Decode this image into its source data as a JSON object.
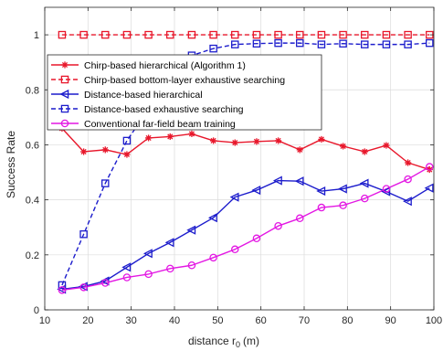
{
  "chart_data": {
    "type": "line",
    "title": "",
    "xlabel": "distance r",
    "xlabel_sub": "0",
    "xlabel_unit": "(m)",
    "ylabel": "Success Rate",
    "xlim": [
      10,
      100
    ],
    "ylim": [
      0,
      1.1
    ],
    "xticks": [
      10,
      20,
      30,
      40,
      50,
      60,
      70,
      80,
      90,
      100
    ],
    "yticks": [
      0,
      0.2,
      0.4,
      0.6,
      0.8,
      1
    ],
    "ytick_labels": [
      "0",
      "0.2",
      "0.4",
      "0.6",
      "0.8",
      "1"
    ],
    "grid": true,
    "legend_position": "upper-left",
    "series": [
      {
        "name": "Chirp-based hierarchical (Algorithm 1)",
        "color": "#e8172b",
        "style": "solid",
        "marker": "asterisk",
        "x": [
          14,
          19,
          24,
          29,
          34,
          39,
          44,
          49,
          54,
          59,
          64,
          69,
          74,
          79,
          84,
          89,
          94,
          99
        ],
        "y": [
          0.66,
          0.575,
          0.582,
          0.565,
          0.625,
          0.63,
          0.64,
          0.615,
          0.608,
          0.612,
          0.615,
          0.582,
          0.62,
          0.595,
          0.575,
          0.598,
          0.535,
          0.51
        ]
      },
      {
        "name": "Chirp-based bottom-layer exhaustive searching",
        "color": "#e8172b",
        "style": "dashed",
        "marker": "square",
        "x": [
          14,
          19,
          24,
          29,
          34,
          39,
          44,
          49,
          54,
          59,
          64,
          69,
          74,
          79,
          84,
          89,
          94,
          99
        ],
        "y": [
          1,
          1,
          1,
          1,
          1,
          1,
          1,
          1,
          1,
          1,
          1,
          1,
          1,
          1,
          1,
          1,
          1,
          1
        ]
      },
      {
        "name": "Distance-based hierarchical",
        "color": "#1c1ccc",
        "style": "solid",
        "marker": "triangle-left",
        "x": [
          14,
          19,
          24,
          29,
          34,
          39,
          44,
          49,
          54,
          59,
          64,
          69,
          74,
          79,
          84,
          89,
          94,
          99
        ],
        "y": [
          0.075,
          0.085,
          0.105,
          0.155,
          0.205,
          0.245,
          0.29,
          0.335,
          0.41,
          0.435,
          0.47,
          0.468,
          0.432,
          0.44,
          0.46,
          0.43,
          0.395,
          0.443
        ]
      },
      {
        "name": "Distance-based exhaustive searching",
        "color": "#1c1ccc",
        "style": "dashed",
        "marker": "square",
        "x": [
          14,
          19,
          24,
          29,
          34,
          39,
          44,
          49,
          54,
          59,
          64,
          69,
          74,
          79,
          84,
          89,
          94,
          99
        ],
        "y": [
          0.09,
          0.275,
          0.46,
          0.615,
          0.73,
          0.835,
          0.925,
          0.95,
          0.965,
          0.968,
          0.97,
          0.97,
          0.965,
          0.968,
          0.965,
          0.965,
          0.965,
          0.97
        ]
      },
      {
        "name": "Conventional far-field beam training",
        "color": "#e317e3",
        "style": "solid",
        "marker": "circle",
        "x": [
          14,
          19,
          24,
          29,
          34,
          39,
          44,
          49,
          54,
          59,
          64,
          69,
          74,
          79,
          84,
          89,
          94,
          99
        ],
        "y": [
          0.072,
          0.082,
          0.098,
          0.118,
          0.13,
          0.15,
          0.162,
          0.19,
          0.22,
          0.26,
          0.305,
          0.333,
          0.372,
          0.38,
          0.405,
          0.44,
          0.475,
          0.52
        ]
      }
    ]
  }
}
